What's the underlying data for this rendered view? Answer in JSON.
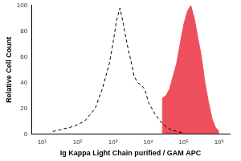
{
  "chart_data": {
    "type": "line",
    "xlabel": "Ig Kappa Light Chain purified / GAM APC",
    "ylabel": "Relative Cell Count",
    "log": "x",
    "grid": false,
    "xlim": [
      5,
      2000000
    ],
    "xticks": [
      {
        "value": 10,
        "label": "10¹"
      },
      {
        "value": 100,
        "label": "10²"
      },
      {
        "value": 1000,
        "label": "10³"
      },
      {
        "value": 10000,
        "label": "10⁴"
      },
      {
        "value": 100000,
        "label": "10⁵"
      },
      {
        "value": 1000000,
        "label": "10⁶"
      }
    ],
    "ylim": [
      0,
      100
    ],
    "yticks": [
      0,
      20,
      40,
      60,
      80,
      100
    ],
    "series": [
      {
        "type": "line",
        "color": "#000000",
        "line_style": "dashed",
        "marker": "none",
        "x": [
          20,
          40,
          79,
          158,
          316,
          501,
          794,
          1000,
          1259,
          1585,
          1995,
          2512,
          3162,
          3981,
          5012,
          6310,
          7943,
          10000,
          15849,
          25119,
          39811,
          63096,
          100000
        ],
        "values": [
          2,
          4,
          6,
          10,
          20,
          35,
          55,
          70,
          88,
          98,
          85,
          70,
          58,
          45,
          40,
          38,
          35,
          25,
          15,
          8,
          4,
          2,
          1
        ]
      },
      {
        "type": "area",
        "color": "#ee4f5c",
        "line_style": "solid",
        "marker": "none",
        "x": [
          25119,
          25119,
          31623,
          39811,
          50119,
          63096,
          79433,
          100000,
          125893,
          158489,
          199526,
          251189,
          316228,
          398107,
          501187,
          630957,
          794328,
          1000000
        ],
        "values": [
          0,
          28,
          30,
          35,
          45,
          55,
          70,
          85,
          95,
          100,
          90,
          75,
          60,
          40,
          25,
          12,
          5,
          2
        ]
      }
    ]
  }
}
